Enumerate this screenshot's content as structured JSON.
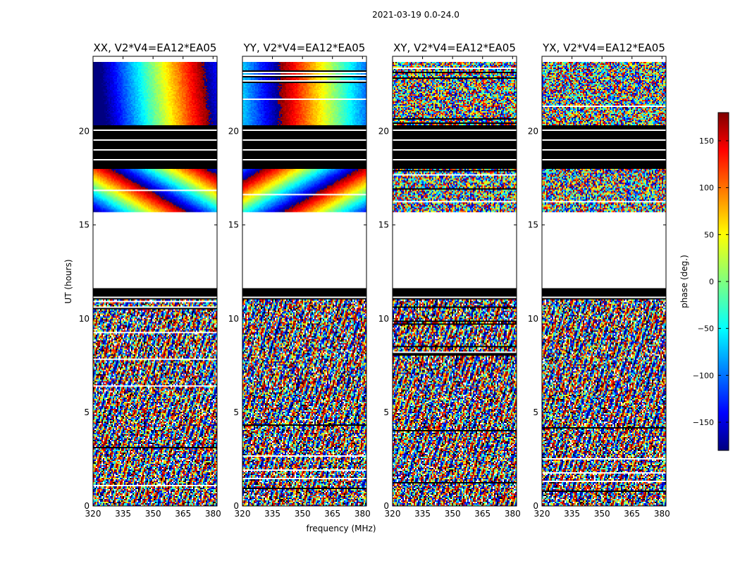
{
  "suptitle": "2021-03-19 0.0-24.0",
  "chart_data": {
    "type": "heatmap",
    "panels": [
      {
        "title": "XX, V2*V4=EA12*EA05",
        "pattern": "xx"
      },
      {
        "title": "YY, V2*V4=EA12*EA05",
        "pattern": "yy"
      },
      {
        "title": "XY, V2*V4=EA12*EA05",
        "pattern": "xy"
      },
      {
        "title": "YX, V2*V4=EA12*EA05",
        "pattern": "yx"
      }
    ],
    "xlabel": "frequency (MHz)",
    "ylabel": "UT (hours)",
    "xlim": [
      320,
      382
    ],
    "ylim": [
      0,
      24
    ],
    "xticks": [
      320,
      335,
      350,
      365,
      380
    ],
    "yticks": [
      0,
      5,
      10,
      15,
      20
    ],
    "colorbar": {
      "label": "phase (deg.)",
      "range": [
        -180,
        180
      ],
      "ticks": [
        150,
        100,
        50,
        0,
        -50,
        -100,
        -150
      ],
      "tick_labels": [
        "150",
        "100",
        "50",
        "0",
        "−50",
        "−100",
        "−150"
      ],
      "colormap": "jet"
    },
    "flagged_hours": [
      [
        11.7,
        15.7
      ]
    ],
    "black_bands_hours": [
      [
        11.0,
        11.7
      ],
      [
        18.0,
        20.3
      ]
    ]
  }
}
